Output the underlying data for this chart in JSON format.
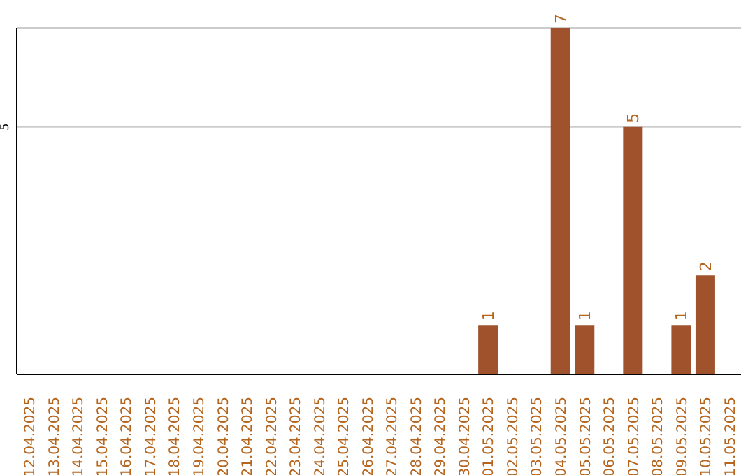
{
  "chart_data": {
    "type": "bar",
    "categories": [
      "12.04.2025",
      "13.04.2025",
      "14.04.2025",
      "15.04.2025",
      "16.04.2025",
      "17.04.2025",
      "18.04.2025",
      "19.04.2025",
      "20.04.2025",
      "21.04.2025",
      "22.04.2025",
      "23.04.2025",
      "24.04.2025",
      "25.04.2025",
      "26.04.2025",
      "27.04.2025",
      "28.04.2025",
      "29.04.2025",
      "30.04.2025",
      "01.05.2025",
      "02.05.2025",
      "03.05.2025",
      "04.05.2025",
      "05.05.2025",
      "06.05.2025",
      "07.05.2025",
      "08.05.2025",
      "09.05.2025",
      "10.05.2025",
      "11.05.2025"
    ],
    "values": [
      null,
      null,
      null,
      null,
      null,
      null,
      null,
      null,
      null,
      null,
      null,
      null,
      null,
      null,
      null,
      null,
      null,
      null,
      null,
      1,
      null,
      null,
      7,
      1,
      null,
      5,
      null,
      1,
      2,
      null
    ],
    "data_labels": true,
    "color": "#a0522d",
    "ylim": [
      0,
      7
    ],
    "yticks": [
      5
    ],
    "grid": "y"
  }
}
